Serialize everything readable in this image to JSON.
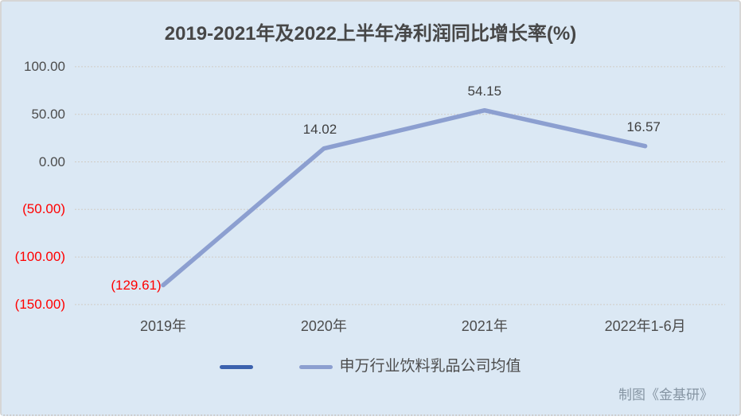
{
  "title": "2019-2021年及2022上半年净利润同比增长率(%)",
  "watermark": "制图《金基研》",
  "colors": {
    "background": "#dbe8f4",
    "line": "#8c9fd0",
    "legend_dark": "#3c62ae",
    "negative_text": "#ff0000",
    "axis_text": "#4c4c4c",
    "title_text": "#474747",
    "gridline": "#d1ccc5"
  },
  "legend": [
    {
      "label": "",
      "color": "#3c62ae"
    },
    {
      "label": "申万行业饮料乳品公司均值",
      "color": "#8c9fd0"
    }
  ],
  "chart_data": {
    "type": "line",
    "title": "2019-2021年及2022上半年净利润同比增长率(%)",
    "categories": [
      "2019年",
      "2020年",
      "2021年",
      "2022年1-6月"
    ],
    "series": [
      {
        "name": "",
        "color": "#3c62ae",
        "values": []
      },
      {
        "name": "申万行业饮料乳品公司均值",
        "color": "#8c9fd0",
        "values": [
          -129.61,
          14.02,
          54.15,
          16.57
        ]
      }
    ],
    "point_labels": [
      "(129.61)",
      "14.02",
      "54.15",
      "16.57"
    ],
    "y_ticks": [
      {
        "label": "100.00",
        "value": 100
      },
      {
        "label": "50.00",
        "value": 50
      },
      {
        "label": "0.00",
        "value": 0
      },
      {
        "label": "(50.00)",
        "value": -50
      },
      {
        "label": "(100.00)",
        "value": -100
      },
      {
        "label": "(150.00)",
        "value": -150
      }
    ],
    "ylim": [
      -150,
      100
    ],
    "xlabel": "",
    "ylabel": "",
    "grid": true,
    "legend_position": "bottom"
  }
}
